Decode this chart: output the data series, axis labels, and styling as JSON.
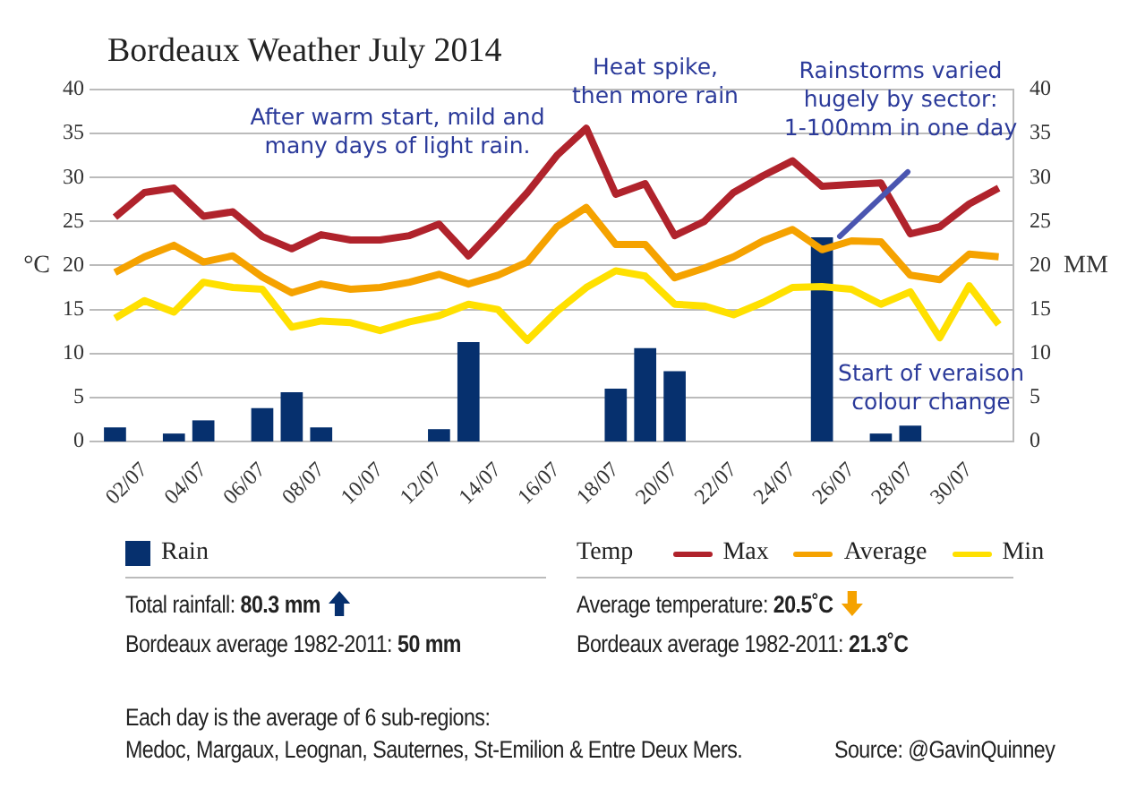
{
  "chart_data": {
    "type": "line",
    "title": "Bordeaux Weather July 2014",
    "ylabel": "°C",
    "y2label": "MM",
    "legend_title": "Temp",
    "legend": "bottom",
    "grid": "y",
    "categories": [
      null,
      "02/07",
      null,
      "04/07",
      null,
      "06/07",
      null,
      "08/07",
      null,
      "10/07",
      null,
      "12/07",
      null,
      "14/07",
      null,
      "16/07",
      null,
      "18/07",
      null,
      "20/07",
      null,
      "22/07",
      null,
      "24/07",
      null,
      "26/07",
      null,
      "28/07",
      null,
      "30/07",
      null
    ],
    "ylim": [
      0,
      40
    ],
    "yticks": [
      0,
      5,
      10,
      15,
      20,
      25,
      30,
      35,
      40
    ],
    "y2lim": [
      0,
      40
    ],
    "y2ticks": [
      0,
      5,
      10,
      15,
      20,
      25,
      30,
      35,
      40
    ],
    "series": [
      {
        "name": "Rain",
        "type": "bar",
        "axis": "y2",
        "color": "#06306e",
        "values": [
          1.6,
          0,
          0.9,
          2.4,
          0,
          3.8,
          5.6,
          1.6,
          0,
          0,
          0,
          1.4,
          11.3,
          0,
          0,
          0,
          0,
          6.0,
          10.6,
          8.0,
          0,
          0,
          0,
          0,
          23.2,
          0,
          0.9,
          1.8,
          0,
          0,
          0
        ]
      },
      {
        "name": "Max",
        "color": "#b0232c",
        "values": [
          25.5,
          28.3,
          28.8,
          25.6,
          26.1,
          23.3,
          21.9,
          23.5,
          22.9,
          22.9,
          23.4,
          24.7,
          21.1,
          24.6,
          28.3,
          32.5,
          35.6,
          28.1,
          29.3,
          23.4,
          25.0,
          28.3,
          30.2,
          31.9,
          29.0,
          29.2,
          29.4,
          23.6,
          24.4,
          27.0,
          28.8
        ]
      },
      {
        "name": "Average",
        "color": "#f5a200",
        "values": [
          19.2,
          21.0,
          22.3,
          20.4,
          21.1,
          18.7,
          16.9,
          17.9,
          17.3,
          17.5,
          18.1,
          19.0,
          17.9,
          18.9,
          20.4,
          24.4,
          26.6,
          22.4,
          22.4,
          18.6,
          19.7,
          21.0,
          22.8,
          24.1,
          21.8,
          22.8,
          22.7,
          18.9,
          18.4,
          21.3,
          21.0
        ]
      },
      {
        "name": "Min",
        "color": "#ffe000",
        "values": [
          14.0,
          16.0,
          14.7,
          18.1,
          17.5,
          17.3,
          13.0,
          13.7,
          13.5,
          12.6,
          13.6,
          14.3,
          15.6,
          15.0,
          11.5,
          14.8,
          17.5,
          19.4,
          18.8,
          15.6,
          15.4,
          14.4,
          15.8,
          17.5,
          17.6,
          17.3,
          15.6,
          17.0,
          11.8,
          17.7,
          13.3
        ]
      }
    ],
    "annotations": [
      "After warm start, mild and\nmany days of light rain.",
      "Heat spike,\nthen more rain",
      "Rainstorms varied\nhugely by sector:\n1-100mm in one day",
      "Start of veraison\ncolour change",
      "Total rainfall: 80.3 mm",
      "Bordeaux average 1982-2011: 50 mm",
      "Average temperature: 20.5˚C",
      "Bordeaux average 1982-2011: 21.3˚C",
      "Each day is the average of 6 sub-regions:\nMedoc, Margaux, Leognan, Sauternes, St-Emilion & Entre Deux Mers.",
      "Source: @GavinQuinney"
    ]
  }
}
